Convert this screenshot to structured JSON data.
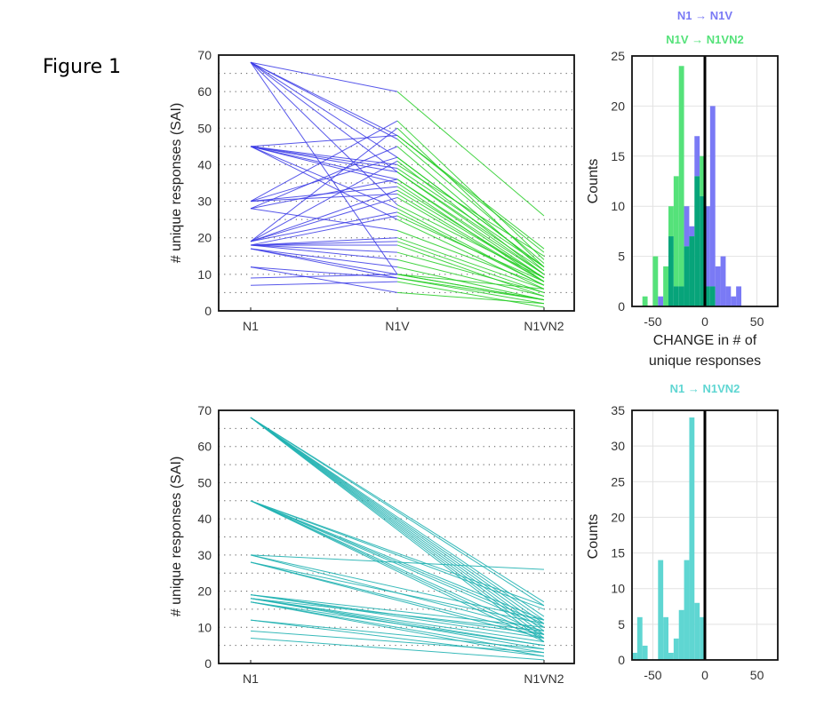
{
  "figure_title": "Figure 1",
  "colors": {
    "n1_to_n1v": "#3a3ae6",
    "n1v_to_n1vn2": "#22cc22",
    "n1_to_n1vn2": "#22b3b3",
    "hist_blue": "#7a7af5",
    "hist_green": "#55e27a",
    "hist_overlap": "#07a47a",
    "hist_teal": "#5fd6d2"
  },
  "chart_data": [
    {
      "id": "top-lines",
      "type": "line",
      "title": "",
      "xlabel": "",
      "ylabel": "# unique responses (SAI)",
      "categories": [
        "N1",
        "N1V",
        "N1VN2"
      ],
      "ylim": [
        0,
        70
      ],
      "yticks": [
        0,
        10,
        20,
        30,
        40,
        50,
        60,
        70
      ],
      "grid": "dotted horizontal every 5",
      "series": [
        {
          "name": "subject",
          "values": [
            68,
            60,
            26
          ]
        },
        {
          "name": "subject",
          "values": [
            68,
            48,
            17
          ]
        },
        {
          "name": "subject",
          "values": [
            68,
            47,
            13
          ]
        },
        {
          "name": "subject",
          "values": [
            68,
            42,
            12
          ]
        },
        {
          "name": "subject",
          "values": [
            68,
            38,
            10
          ]
        },
        {
          "name": "subject",
          "values": [
            68,
            29,
            9
          ]
        },
        {
          "name": "subject",
          "values": [
            68,
            10,
            6
          ]
        },
        {
          "name": "subject",
          "values": [
            45,
            48,
            16
          ]
        },
        {
          "name": "subject",
          "values": [
            45,
            40,
            15
          ]
        },
        {
          "name": "subject",
          "values": [
            45,
            39,
            12
          ]
        },
        {
          "name": "subject",
          "values": [
            45,
            38,
            11
          ]
        },
        {
          "name": "subject",
          "values": [
            45,
            36,
            10
          ]
        },
        {
          "name": "subject",
          "values": [
            45,
            35,
            8
          ]
        },
        {
          "name": "subject",
          "values": [
            45,
            28,
            7
          ]
        },
        {
          "name": "subject",
          "values": [
            45,
            25,
            6
          ]
        },
        {
          "name": "subject",
          "values": [
            30,
            52,
            14
          ]
        },
        {
          "name": "subject",
          "values": [
            30,
            42,
            12
          ]
        },
        {
          "name": "subject",
          "values": [
            30,
            34,
            9
          ]
        },
        {
          "name": "subject",
          "values": [
            30,
            32,
            8
          ]
        },
        {
          "name": "subject",
          "values": [
            28,
            45,
            11
          ]
        },
        {
          "name": "subject",
          "values": [
            28,
            36,
            9
          ]
        },
        {
          "name": "subject",
          "values": [
            28,
            22,
            7
          ]
        },
        {
          "name": "subject",
          "values": [
            19,
            50,
            12
          ]
        },
        {
          "name": "subject",
          "values": [
            19,
            41,
            10
          ]
        },
        {
          "name": "subject",
          "values": [
            19,
            33,
            9
          ]
        },
        {
          "name": "subject",
          "values": [
            19,
            31,
            8
          ]
        },
        {
          "name": "subject",
          "values": [
            19,
            27,
            7
          ]
        },
        {
          "name": "subject",
          "values": [
            18,
            26,
            8
          ]
        },
        {
          "name": "subject",
          "values": [
            18,
            20,
            6
          ]
        },
        {
          "name": "subject",
          "values": [
            18,
            19,
            5
          ]
        },
        {
          "name": "subject",
          "values": [
            18,
            18,
            4
          ]
        },
        {
          "name": "subject",
          "values": [
            18,
            16,
            5
          ]
        },
        {
          "name": "subject",
          "values": [
            18,
            14,
            4
          ]
        },
        {
          "name": "subject",
          "values": [
            17,
            12,
            3
          ]
        },
        {
          "name": "subject",
          "values": [
            17,
            10,
            3
          ]
        },
        {
          "name": "subject",
          "values": [
            17,
            9,
            2
          ]
        },
        {
          "name": "subject",
          "values": [
            12,
            9,
            3
          ]
        },
        {
          "name": "subject",
          "values": [
            12,
            5,
            2
          ]
        },
        {
          "name": "subject",
          "values": [
            9,
            10,
            3
          ]
        },
        {
          "name": "subject",
          "values": [
            7,
            8,
            1
          ]
        }
      ]
    },
    {
      "id": "top-hist",
      "type": "bar",
      "title": "",
      "xlabel": "CHANGE in # of unique responses",
      "ylabel": "Counts",
      "xlim": [
        -70,
        70
      ],
      "ylim": [
        0,
        25
      ],
      "xticks": [
        -50,
        0,
        50
      ],
      "yticks": [
        0,
        5,
        10,
        15,
        20,
        25
      ],
      "grid": true,
      "reference_line_x": 0,
      "legend": {
        "placement": "top",
        "entries": [
          "N1 → N1V",
          "N1V → N1VN2"
        ]
      },
      "bin_width": 5,
      "bin_starts": [
        -60,
        -55,
        -50,
        -45,
        -40,
        -35,
        -30,
        -25,
        -20,
        -15,
        -10,
        -5,
        0,
        5,
        10,
        15,
        20,
        25,
        30
      ],
      "series": [
        {
          "name": "N1 → N1V",
          "values": [
            0,
            0,
            0,
            1,
            0,
            7,
            2,
            2,
            10,
            8,
            17,
            11,
            10,
            20,
            4,
            5,
            2,
            1,
            2
          ]
        },
        {
          "name": "N1V → N1VN2",
          "values": [
            1,
            0,
            5,
            0,
            4,
            10,
            13,
            24,
            6,
            7,
            13,
            15,
            2,
            2,
            0,
            0,
            0,
            0,
            0
          ]
        }
      ]
    },
    {
      "id": "bottom-lines",
      "type": "line",
      "title": "",
      "xlabel": "",
      "ylabel": "# unique responses (SAI)",
      "categories": [
        "N1",
        "N1VN2"
      ],
      "ylim": [
        0,
        70
      ],
      "yticks": [
        0,
        10,
        20,
        30,
        40,
        50,
        60,
        70
      ],
      "grid": "dotted horizontal every 5",
      "series": [
        {
          "name": "subject",
          "values": [
            68,
            17
          ]
        },
        {
          "name": "subject",
          "values": [
            68,
            16
          ]
        },
        {
          "name": "subject",
          "values": [
            68,
            13
          ]
        },
        {
          "name": "subject",
          "values": [
            68,
            12
          ]
        },
        {
          "name": "subject",
          "values": [
            68,
            11
          ]
        },
        {
          "name": "subject",
          "values": [
            68,
            10
          ]
        },
        {
          "name": "subject",
          "values": [
            68,
            9
          ]
        },
        {
          "name": "subject",
          "values": [
            68,
            8
          ]
        },
        {
          "name": "subject",
          "values": [
            68,
            7
          ]
        },
        {
          "name": "subject",
          "values": [
            68,
            6
          ]
        },
        {
          "name": "subject",
          "values": [
            45,
            16
          ]
        },
        {
          "name": "subject",
          "values": [
            45,
            15
          ]
        },
        {
          "name": "subject",
          "values": [
            45,
            12
          ]
        },
        {
          "name": "subject",
          "values": [
            45,
            11
          ]
        },
        {
          "name": "subject",
          "values": [
            45,
            10
          ]
        },
        {
          "name": "subject",
          "values": [
            45,
            8
          ]
        },
        {
          "name": "subject",
          "values": [
            45,
            7
          ]
        },
        {
          "name": "subject",
          "values": [
            45,
            6
          ]
        },
        {
          "name": "subject",
          "values": [
            30,
            26
          ]
        },
        {
          "name": "subject",
          "values": [
            30,
            12
          ]
        },
        {
          "name": "subject",
          "values": [
            30,
            9
          ]
        },
        {
          "name": "subject",
          "values": [
            28,
            11
          ]
        },
        {
          "name": "subject",
          "values": [
            28,
            8
          ]
        },
        {
          "name": "subject",
          "values": [
            28,
            7
          ]
        },
        {
          "name": "subject",
          "values": [
            19,
            10
          ]
        },
        {
          "name": "subject",
          "values": [
            19,
            8
          ]
        },
        {
          "name": "subject",
          "values": [
            19,
            7
          ]
        },
        {
          "name": "subject",
          "values": [
            18,
            9
          ]
        },
        {
          "name": "subject",
          "values": [
            18,
            6
          ]
        },
        {
          "name": "subject",
          "values": [
            18,
            5
          ]
        },
        {
          "name": "subject",
          "values": [
            18,
            4
          ]
        },
        {
          "name": "subject",
          "values": [
            17,
            5
          ]
        },
        {
          "name": "subject",
          "values": [
            17,
            3
          ]
        },
        {
          "name": "subject",
          "values": [
            17,
            2
          ]
        },
        {
          "name": "subject",
          "values": [
            12,
            4
          ]
        },
        {
          "name": "subject",
          "values": [
            12,
            2
          ]
        },
        {
          "name": "subject",
          "values": [
            9,
            3
          ]
        },
        {
          "name": "subject",
          "values": [
            7,
            1
          ]
        }
      ]
    },
    {
      "id": "bottom-hist",
      "type": "bar",
      "title": "",
      "xlabel": "",
      "ylabel": "Counts",
      "xlim": [
        -70,
        70
      ],
      "ylim": [
        0,
        35
      ],
      "xticks": [
        -50,
        0,
        50
      ],
      "yticks": [
        0,
        5,
        10,
        15,
        20,
        25,
        30,
        35
      ],
      "grid": true,
      "reference_line_x": 0,
      "legend": {
        "placement": "top",
        "entries": [
          "N1 → N1VN2"
        ]
      },
      "bin_width": 5,
      "bin_starts": [
        -70,
        -65,
        -60,
        -55,
        -50,
        -45,
        -40,
        -35,
        -30,
        -25,
        -20,
        -15,
        -10,
        -5
      ],
      "series": [
        {
          "name": "N1 → N1VN2",
          "values": [
            1,
            6,
            2,
            0,
            0,
            14,
            6,
            1,
            3,
            7,
            14,
            34,
            8,
            6
          ]
        }
      ]
    }
  ]
}
